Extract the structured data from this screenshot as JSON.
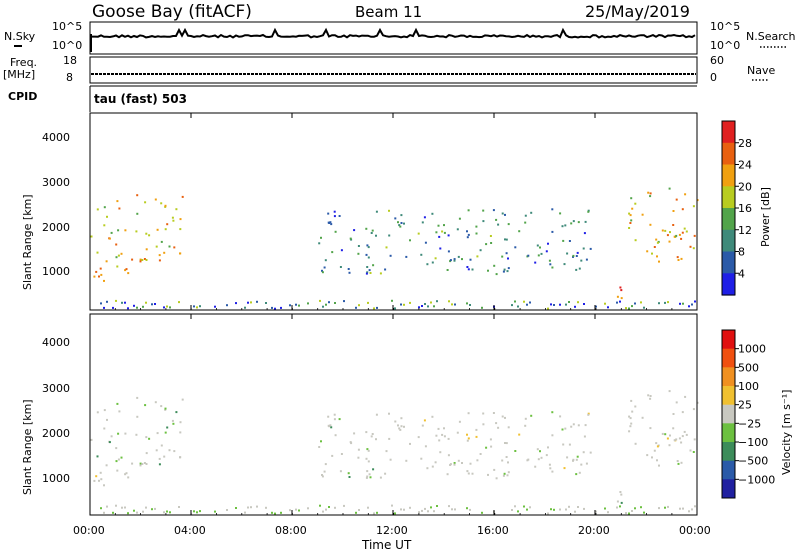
{
  "header": {
    "station": "Goose Bay (fitACF)",
    "beam": "Beam 11",
    "date": "25/May/2019"
  },
  "noise_panel": {
    "left_label": "N.Sky",
    "left_ticks": [
      "10^5",
      "10^0"
    ],
    "right_ticks": [
      "10^5",
      "10^0"
    ],
    "right_label": "N.Search"
  },
  "freq_panel": {
    "left_label_line1": "Freq.",
    "left_label_line2": "[MHz]",
    "left_ticks": [
      "18",
      "8"
    ],
    "right_ticks": [
      "60",
      "0"
    ],
    "right_label": "Nave"
  },
  "cpid_panel": {
    "left_label": "CPID",
    "text": "tau (fast) 503"
  },
  "x_axis": {
    "ticks": [
      "00:00",
      "04:00",
      "08:00",
      "12:00",
      "16:00",
      "20:00",
      "00:00"
    ],
    "label": "Time UT"
  },
  "power_panel": {
    "ylabel": "Slant Range [km]",
    "yticks": [
      "1000",
      "2000",
      "3000",
      "4000"
    ],
    "colorbar_label": "Power [dB]",
    "colorbar_ticks": [
      "4",
      "8",
      "12",
      "16",
      "20",
      "24",
      "28"
    ],
    "colorbar_colors": [
      "#1f1fe6",
      "#2b5aa8",
      "#3f8a7a",
      "#52a44a",
      "#b8cc20",
      "#f0a010",
      "#e86010",
      "#e02020"
    ]
  },
  "velocity_panel": {
    "ylabel": "Slant Range [km]",
    "yticks": [
      "1000",
      "2000",
      "3000",
      "4000"
    ],
    "colorbar_label": "Velocity [m s⁻¹]",
    "colorbar_ticks": [
      "1000",
      "500",
      "100",
      "25",
      "−25",
      "−100",
      "−500",
      "−1000"
    ],
    "colorbar_colors": [
      "#2020a0",
      "#2a5aa8",
      "#3c8c5a",
      "#6cc040",
      "#c8c8c0",
      "#f0c030",
      "#f09020",
      "#f05010",
      "#e01010"
    ]
  },
  "chart_data": [
    {
      "type": "line",
      "name": "N.Sky",
      "x": [
        "00:00",
        "04:00",
        "08:00",
        "12:00",
        "16:00",
        "20:00",
        "00:00"
      ],
      "ylim": [
        "10^0",
        "10^5"
      ],
      "log_scale": true
    },
    {
      "type": "line",
      "name": "Freq.",
      "x": [
        "00:00",
        "04:00",
        "08:00",
        "12:00",
        "16:00",
        "20:00",
        "00:00"
      ],
      "ylim": [
        8,
        18
      ],
      "values_approx": 9.5
    },
    {
      "type": "heatmap",
      "title": "Power [dB]",
      "xlabel": "Time UT",
      "ylabel": "Slant Range [km]",
      "xlim": [
        "00:00",
        "00:00"
      ],
      "ylim": [
        200,
        4600
      ],
      "zlim": [
        0,
        32
      ],
      "echo_regions": [
        {
          "t_start": "00:00",
          "t_end": "03:40",
          "range_km": [
            1300,
            2800
          ],
          "power_db": 20
        },
        {
          "t_start": "00:00",
          "t_end": "01:30",
          "range_km": [
            600,
            1300
          ],
          "power_db": 22
        },
        {
          "t_start": "09:00",
          "t_end": "20:00",
          "range_km": [
            1000,
            2500
          ],
          "power_db": 10
        },
        {
          "t_start": "20:00",
          "t_end": "21:00",
          "range_km": [
            300,
            800
          ],
          "power_db": 26
        },
        {
          "t_start": "21:00",
          "t_end": "24:00",
          "range_km": [
            1300,
            3000
          ],
          "power_db": 20
        }
      ]
    },
    {
      "type": "heatmap",
      "title": "Velocity [m s⁻¹]",
      "xlabel": "Time UT",
      "ylabel": "Slant Range [km]",
      "xlim": [
        "00:00",
        "00:00"
      ],
      "ylim": [
        200,
        4600
      ],
      "zlim": [
        -1000,
        1000
      ],
      "dominant_value": "-25 to 25"
    }
  ]
}
